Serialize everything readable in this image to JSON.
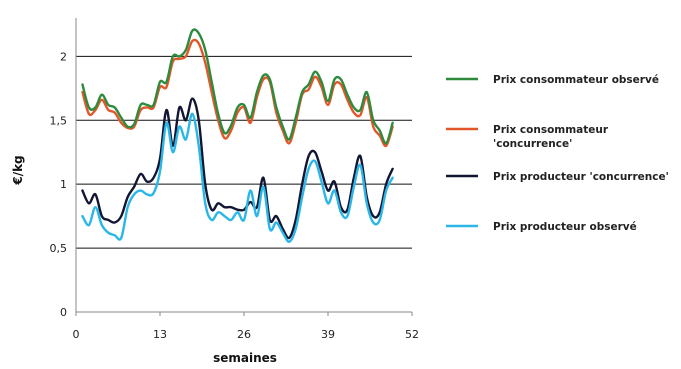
{
  "chart_data": {
    "type": "line",
    "xlabel": "semaines",
    "ylabel": "€/kg",
    "xlim": [
      0,
      52
    ],
    "ylim": [
      0,
      2.3
    ],
    "x_ticks": [
      0,
      13,
      26,
      39,
      52
    ],
    "y_ticks": [
      0,
      0.5,
      1,
      1.5,
      2
    ],
    "x_tick_labels": [
      "0",
      "13",
      "26",
      "39",
      "52"
    ],
    "y_tick_labels": [
      "0",
      "0,5",
      "1",
      "1,5",
      "2"
    ],
    "grid": "horizontal",
    "legend_position": "right",
    "series": [
      {
        "name": "Prix consommateur observé",
        "color": "#2e8b3e",
        "x": [
          1,
          2,
          3,
          4,
          5,
          6,
          7,
          8,
          9,
          10,
          11,
          12,
          13,
          14,
          15,
          16,
          17,
          18,
          19,
          20,
          21,
          22,
          23,
          24,
          25,
          26,
          27,
          28,
          29,
          30,
          31,
          32,
          33,
          34,
          35,
          36,
          37,
          38,
          39,
          40,
          41,
          42,
          43,
          44,
          45,
          46,
          47,
          48,
          49
        ],
        "values": [
          1.78,
          1.6,
          1.6,
          1.7,
          1.62,
          1.6,
          1.52,
          1.45,
          1.47,
          1.62,
          1.62,
          1.62,
          1.8,
          1.8,
          2.0,
          2.0,
          2.05,
          2.2,
          2.18,
          2.05,
          1.8,
          1.55,
          1.4,
          1.46,
          1.6,
          1.62,
          1.52,
          1.72,
          1.85,
          1.82,
          1.6,
          1.45,
          1.35,
          1.52,
          1.72,
          1.78,
          1.88,
          1.8,
          1.65,
          1.82,
          1.82,
          1.7,
          1.6,
          1.58,
          1.72,
          1.5,
          1.42,
          1.32,
          1.48
        ]
      },
      {
        "name": "Prix consommateur 'concurrence'",
        "color": "#e2572a",
        "x": [
          1,
          2,
          3,
          4,
          5,
          6,
          7,
          8,
          9,
          10,
          11,
          12,
          13,
          14,
          15,
          16,
          17,
          18,
          19,
          20,
          21,
          22,
          23,
          24,
          25,
          26,
          27,
          28,
          29,
          30,
          31,
          32,
          33,
          34,
          35,
          36,
          37,
          38,
          39,
          40,
          41,
          42,
          43,
          44,
          45,
          46,
          47,
          48,
          49
        ],
        "values": [
          1.72,
          1.55,
          1.58,
          1.66,
          1.58,
          1.56,
          1.48,
          1.44,
          1.45,
          1.58,
          1.6,
          1.6,
          1.76,
          1.76,
          1.96,
          1.98,
          2.0,
          2.12,
          2.1,
          1.95,
          1.72,
          1.5,
          1.36,
          1.42,
          1.56,
          1.6,
          1.48,
          1.68,
          1.82,
          1.8,
          1.56,
          1.42,
          1.32,
          1.48,
          1.7,
          1.74,
          1.84,
          1.76,
          1.62,
          1.78,
          1.78,
          1.66,
          1.56,
          1.54,
          1.68,
          1.45,
          1.38,
          1.3,
          1.45
        ]
      },
      {
        "name": "Prix producteur 'concurrence'",
        "color": "#121633",
        "x": [
          1,
          2,
          3,
          4,
          5,
          6,
          7,
          8,
          9,
          10,
          11,
          12,
          13,
          14,
          15,
          16,
          17,
          18,
          19,
          20,
          21,
          22,
          23,
          24,
          25,
          26,
          27,
          28,
          29,
          30,
          31,
          32,
          33,
          34,
          35,
          36,
          37,
          38,
          39,
          40,
          41,
          42,
          43,
          44,
          45,
          46,
          47,
          48,
          49
        ],
        "values": [
          0.95,
          0.85,
          0.92,
          0.75,
          0.72,
          0.7,
          0.75,
          0.9,
          0.98,
          1.08,
          1.02,
          1.05,
          1.2,
          1.58,
          1.3,
          1.6,
          1.5,
          1.67,
          1.5,
          1.0,
          0.8,
          0.85,
          0.82,
          0.82,
          0.8,
          0.8,
          0.86,
          0.82,
          1.05,
          0.72,
          0.75,
          0.65,
          0.58,
          0.72,
          1.0,
          1.22,
          1.25,
          1.1,
          0.95,
          1.02,
          0.82,
          0.8,
          1.05,
          1.22,
          0.9,
          0.75,
          0.78,
          1.0,
          1.12
        ]
      },
      {
        "name": "Prix producteur observé",
        "color": "#2ab7e8",
        "x": [
          1,
          2,
          3,
          4,
          5,
          6,
          7,
          8,
          9,
          10,
          11,
          12,
          13,
          14,
          15,
          16,
          17,
          18,
          19,
          20,
          21,
          22,
          23,
          24,
          25,
          26,
          27,
          28,
          29,
          30,
          31,
          32,
          33,
          34,
          35,
          36,
          37,
          38,
          39,
          40,
          41,
          42,
          43,
          44,
          45,
          46,
          47,
          48,
          49
        ],
        "values": [
          0.75,
          0.68,
          0.82,
          0.68,
          0.62,
          0.6,
          0.58,
          0.82,
          0.92,
          0.95,
          0.92,
          0.93,
          1.1,
          1.48,
          1.25,
          1.45,
          1.35,
          1.55,
          1.3,
          0.85,
          0.72,
          0.78,
          0.75,
          0.72,
          0.78,
          0.72,
          0.95,
          0.75,
          0.98,
          0.65,
          0.7,
          0.62,
          0.55,
          0.65,
          0.9,
          1.12,
          1.18,
          1.02,
          0.85,
          0.95,
          0.78,
          0.75,
          0.98,
          1.15,
          0.85,
          0.7,
          0.72,
          0.95,
          1.05
        ]
      }
    ]
  }
}
